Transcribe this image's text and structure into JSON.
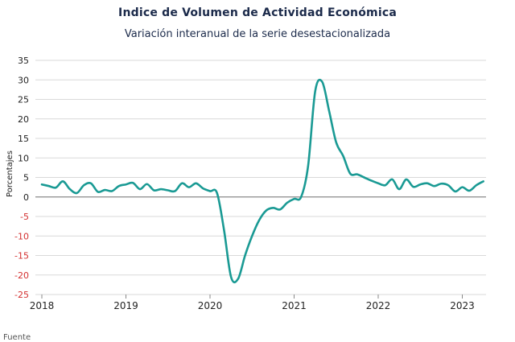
{
  "chart_data": {
    "type": "line",
    "title": "Indice de Volumen de  Actividad Económica",
    "subtitle": "Variación interanual de la serie desestacionalizada",
    "ylabel": "Porcentajes",
    "xlabel": "",
    "ylim": [
      -25,
      35
    ],
    "yticks": [
      35,
      30,
      25,
      20,
      15,
      10,
      5,
      0,
      -5,
      -10,
      -15,
      -20,
      -25
    ],
    "xticks": [
      "2018",
      "2019",
      "2020",
      "2021",
      "2022",
      "2023"
    ],
    "grid": true,
    "legend": "none",
    "colors": {
      "line": "#1a9a94",
      "negative_ticks": "#d33030",
      "positive_ticks": "#222222",
      "grid": "#d9d9d9",
      "zero_line": "#888888"
    },
    "series": [
      {
        "x": [
          "2018-01",
          "2018-02",
          "2018-03",
          "2018-04",
          "2018-05",
          "2018-06",
          "2018-07",
          "2018-08",
          "2018-09",
          "2018-10",
          "2018-11",
          "2018-12",
          "2019-01",
          "2019-02",
          "2019-03",
          "2019-04",
          "2019-05",
          "2019-06",
          "2019-07",
          "2019-08",
          "2019-09",
          "2019-10",
          "2019-11",
          "2019-12",
          "2020-01",
          "2020-02",
          "2020-03",
          "2020-04",
          "2020-05",
          "2020-06",
          "2020-07",
          "2020-08",
          "2020-09",
          "2020-10",
          "2020-11",
          "2020-12",
          "2021-01",
          "2021-02",
          "2021-03",
          "2021-04",
          "2021-05",
          "2021-06",
          "2021-07",
          "2021-08",
          "2021-09",
          "2021-10",
          "2021-11",
          "2021-12",
          "2022-01",
          "2022-02",
          "2022-03",
          "2022-04",
          "2022-05",
          "2022-06",
          "2022-07",
          "2022-08",
          "2022-09",
          "2022-10",
          "2022-11",
          "2022-12",
          "2023-01",
          "2023-02",
          "2023-03",
          "2023-04"
        ],
        "values": [
          3.2,
          2.8,
          2.4,
          4.0,
          2.0,
          1.0,
          3.0,
          3.5,
          1.3,
          1.8,
          1.5,
          2.8,
          3.2,
          3.6,
          2.0,
          3.3,
          1.7,
          2.0,
          1.7,
          1.5,
          3.5,
          2.5,
          3.5,
          2.2,
          1.5,
          1.0,
          -8.5,
          -20.5,
          -21.0,
          -15.0,
          -10.0,
          -6.0,
          -3.5,
          -2.8,
          -3.2,
          -1.5,
          -0.5,
          0.0,
          8.0,
          27.0,
          29.5,
          22.0,
          14.0,
          10.5,
          6.0,
          5.8,
          5.0,
          4.2,
          3.5,
          3.0,
          4.5,
          2.0,
          4.5,
          2.6,
          3.2,
          3.5,
          2.8,
          3.4,
          3.0,
          1.4,
          2.5,
          1.6,
          3.0,
          4.0
        ]
      }
    ]
  },
  "footer": {
    "source": "Fuente"
  }
}
